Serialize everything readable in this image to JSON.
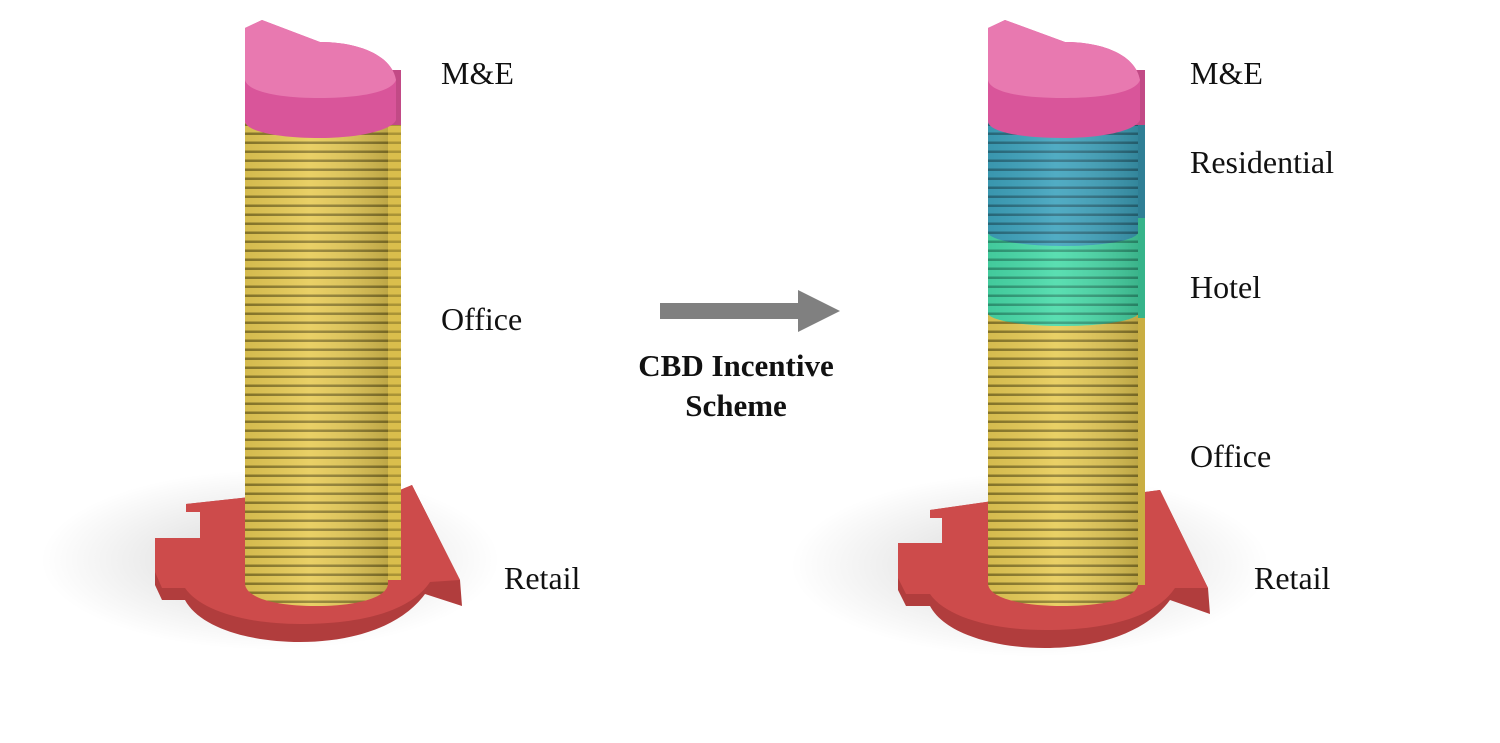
{
  "left_tower": {
    "labels": {
      "top": "M&E",
      "middle": "Office",
      "base": "Retail"
    }
  },
  "transition": {
    "caption_line1": "CBD Incentive",
    "caption_line2": "Scheme"
  },
  "right_tower": {
    "labels": {
      "top": "M&E",
      "upper": "Residential",
      "middle": "Hotel",
      "lower": "Office",
      "base": "Retail"
    }
  },
  "colors": {
    "mande": "#e05a9a",
    "office": "#e7cb55",
    "residential": "#3ea3bd",
    "hotel": "#48dba9",
    "retail": "#cd4b4b",
    "arrow": "#808080",
    "floor_line": "#8f7d2c"
  }
}
